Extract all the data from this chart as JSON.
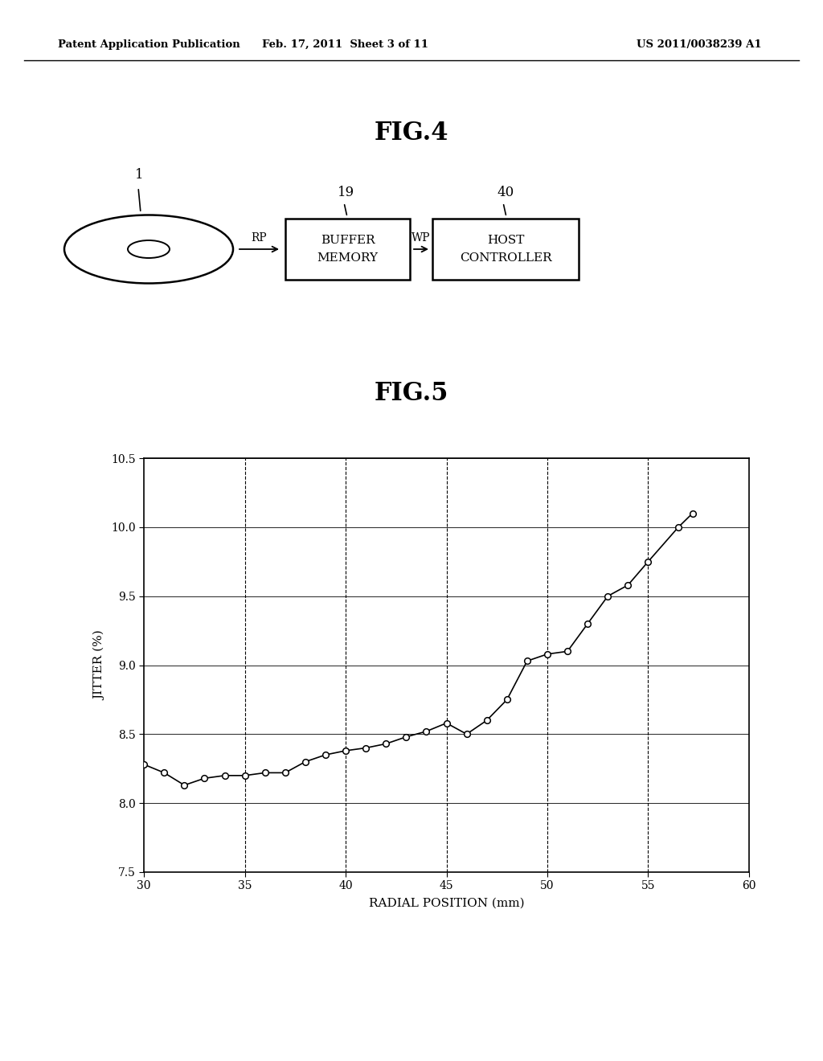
{
  "header_left": "Patent Application Publication",
  "header_mid": "Feb. 17, 2011  Sheet 3 of 11",
  "header_right": "US 2011/0038239 A1",
  "fig4_title": "FIG.4",
  "fig5_title": "FIG.5",
  "fig4_label1": "1",
  "fig4_label19": "19",
  "fig4_label40": "40",
  "fig4_rp": "RP",
  "fig4_wp": "WP",
  "fig4_box1_line1": "BUFFER",
  "fig4_box1_line2": "MEMORY",
  "fig4_box2_line1": "HOST",
  "fig4_box2_line2": "CONTROLLER",
  "graph_xlabel": "RADIAL POSITION (mm)",
  "graph_ylabel": "JITTER (%)",
  "graph_xlim": [
    30,
    60
  ],
  "graph_ylim": [
    7.5,
    10.5
  ],
  "graph_xticks": [
    30,
    35,
    40,
    45,
    50,
    55,
    60
  ],
  "graph_yticks": [
    7.5,
    8.0,
    8.5,
    9.0,
    9.5,
    10.0,
    10.5
  ],
  "data_x": [
    30.0,
    31.0,
    32.0,
    33.0,
    34.0,
    35.0,
    36.0,
    37.0,
    38.0,
    39.0,
    40.0,
    41.0,
    42.0,
    43.0,
    44.0,
    45.0,
    46.0,
    47.0,
    48.0,
    49.0,
    50.0,
    51.0,
    52.0,
    53.0,
    54.0,
    55.0,
    56.5,
    57.2
  ],
  "data_y": [
    8.28,
    8.22,
    8.13,
    8.18,
    8.2,
    8.2,
    8.22,
    8.22,
    8.3,
    8.35,
    8.38,
    8.4,
    8.43,
    8.48,
    8.52,
    8.58,
    8.5,
    8.6,
    8.75,
    9.03,
    9.08,
    9.1,
    9.3,
    9.5,
    9.58,
    9.75,
    10.0,
    10.1
  ],
  "background_color": "#ffffff",
  "line_color": "#000000",
  "marker_color": "#ffffff",
  "marker_edge_color": "#000000",
  "dashed_vlines": [
    35,
    40,
    45,
    50,
    55
  ]
}
